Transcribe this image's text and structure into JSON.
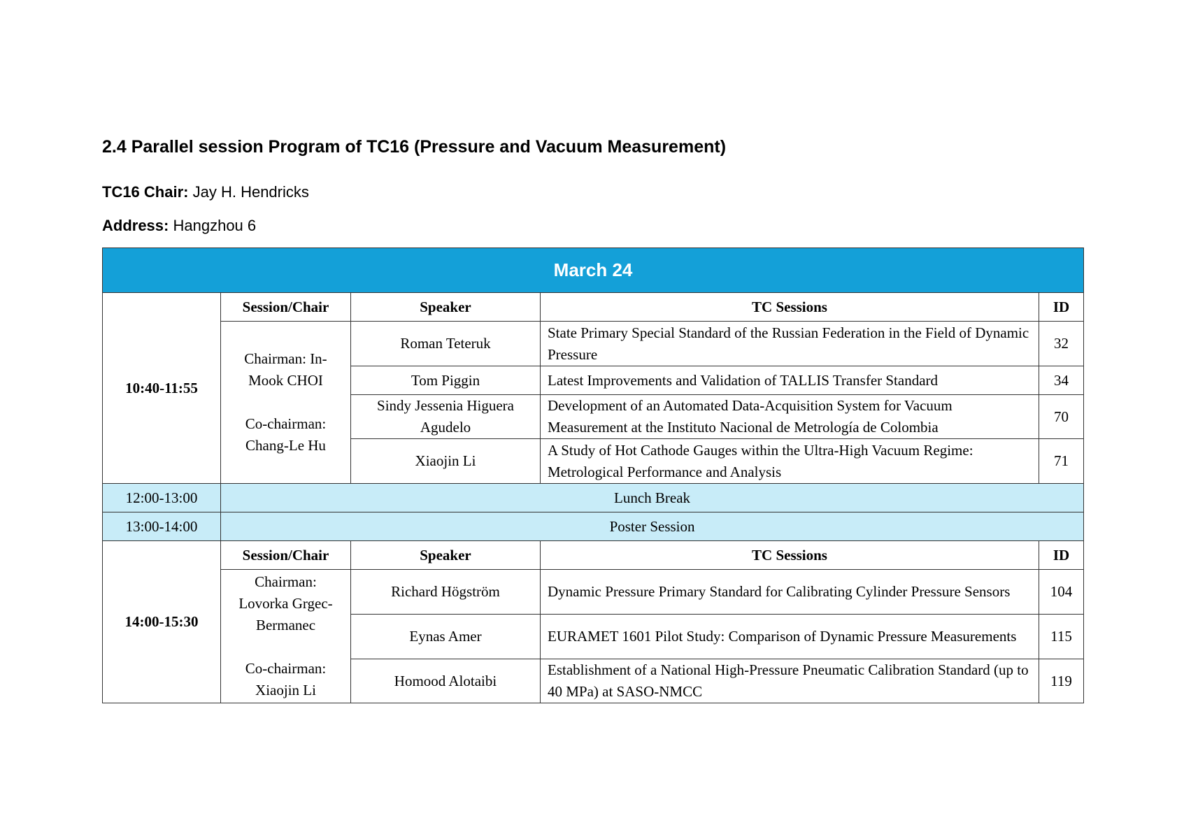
{
  "title": "2.4 Parallel session Program of TC16 (Pressure and Vacuum Measurement)",
  "chair_label": "TC16 Chair:",
  "chair_value": "Jay H. Hendricks",
  "address_label": "Address:",
  "address_value": "Hangzhou 6",
  "colors": {
    "header_bg": "#14a0d8",
    "break_bg": "#c8ecf8"
  },
  "table": {
    "day": "March 24",
    "headers": {
      "session": "Session/Chair",
      "speaker": "Speaker",
      "tc": "TC Sessions",
      "id": "ID"
    },
    "block1": {
      "time": "10:40-11:55",
      "chair": "Chairman: In-Mook CHOI",
      "cochair": "Co-chairman: Chang-Le Hu",
      "rows": [
        {
          "speaker": "Roman Teteruk",
          "title": "State Primary Special Standard of the Russian Federation in the Field of Dynamic Pressure",
          "id": "32"
        },
        {
          "speaker": "Tom Piggin",
          "title": "Latest Improvements and Validation of TALLIS Transfer Standard",
          "id": "34"
        },
        {
          "speaker": "Sindy Jessenia Higuera Agudelo",
          "title": "Development of an Automated Data-Acquisition System for Vacuum Measurement at the Instituto Nacional de Metrología de Colombia",
          "id": "70"
        },
        {
          "speaker": "Xiaojin Li",
          "title": "A Study of Hot Cathode Gauges within the Ultra-High Vacuum Regime: Metrological Performance and Analysis",
          "id": "71"
        }
      ]
    },
    "breaks": [
      {
        "time": "12:00-13:00",
        "label": "Lunch Break"
      },
      {
        "time": "13:00-14:00",
        "label": "Poster Session"
      }
    ],
    "block2": {
      "time": "14:00-15:30",
      "chair": "Chairman: Lovorka Grgec-Bermanec",
      "cochair": "Co-chairman: Xiaojin Li",
      "rows": [
        {
          "speaker": "Richard Högström",
          "title": "Dynamic Pressure Primary Standard for Calibrating Cylinder Pressure Sensors",
          "id": "104"
        },
        {
          "speaker": "Eynas Amer",
          "title": "EURAMET 1601 Pilot Study: Comparison of Dynamic Pressure Measurements",
          "id": "115"
        },
        {
          "speaker": "Homood Alotaibi",
          "title": "Establishment of a National High-Pressure Pneumatic Calibration Standard (up to 40 MPa) at SASO-NMCC",
          "id": "119"
        }
      ]
    }
  }
}
